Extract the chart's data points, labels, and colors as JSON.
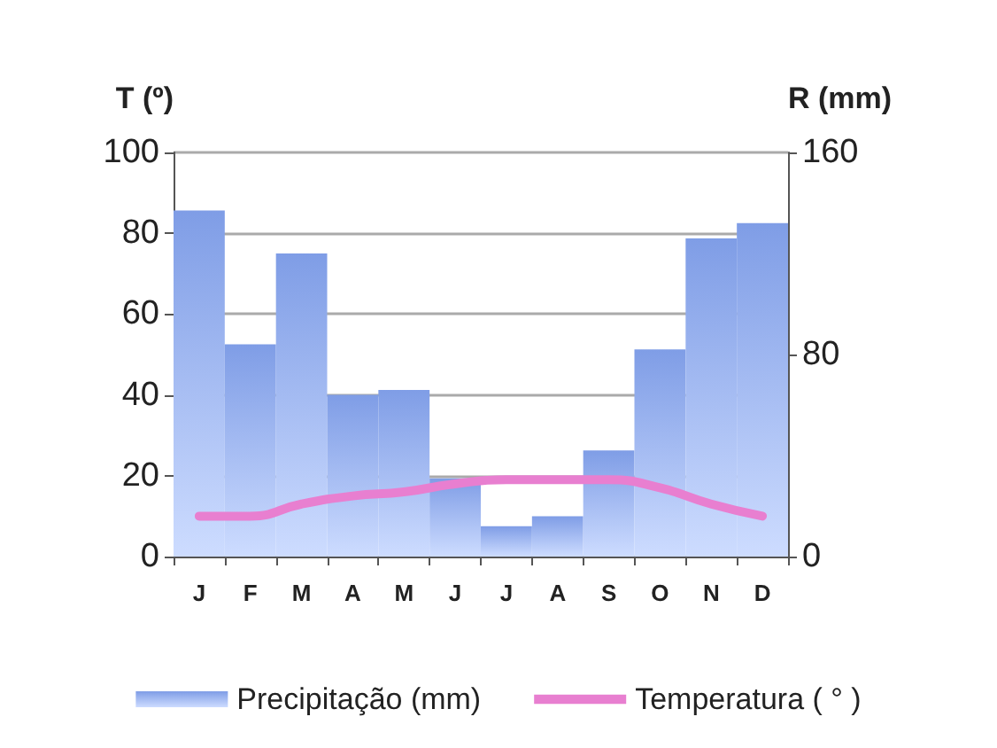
{
  "chart_data": {
    "type": "bar",
    "ylabel": "T (º)",
    "y2label": "R (mm)",
    "categories": [
      "J",
      "F",
      "M",
      "A",
      "M",
      "J",
      "J",
      "A",
      "S",
      "O",
      "N",
      "D"
    ],
    "series": [
      {
        "name": "Precipitação (mm)",
        "axis": "y2",
        "color": "#7f9de6",
        "values": [
          137,
          84,
          120,
          64,
          66,
          31,
          12,
          16,
          42,
          82,
          126,
          132
        ]
      },
      {
        "name": "Temperatura ( ° )",
        "type": "line",
        "axis": "y",
        "color": "#e87fd0",
        "values": [
          10,
          10,
          13,
          15,
          16,
          18,
          19,
          19,
          19,
          17,
          13,
          10
        ]
      }
    ],
    "ylim": [
      0,
      100
    ],
    "yticks": [
      0,
      20,
      40,
      60,
      80,
      100
    ],
    "y2lim": [
      0,
      160
    ],
    "y2ticks": [
      0,
      80,
      160
    ],
    "grid": "y",
    "legend": "bottom",
    "marker": "none",
    "line_style": "solid"
  }
}
